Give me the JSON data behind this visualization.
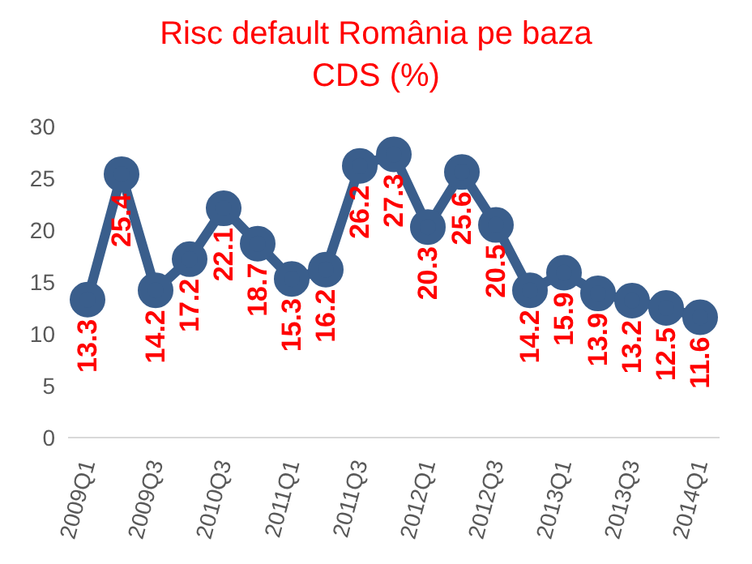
{
  "chart_data": {
    "type": "line",
    "title": "Risc default România pe baza CDS (%)",
    "categories": [
      "2009Q1",
      null,
      "2009Q3",
      null,
      "2010Q3",
      null,
      "2011Q1",
      null,
      "2011Q3",
      null,
      "2012Q1",
      null,
      "2012Q3",
      null,
      "2013Q1",
      null,
      "2013Q3",
      null,
      "2014Q1"
    ],
    "series": [
      {
        "color": "#3a5e8c",
        "values": [
          13.3,
          25.4,
          14.2,
          17.2,
          22.1,
          18.7,
          15.3,
          16.2,
          26.2,
          27.3,
          20.3,
          25.6,
          20.5,
          14.2,
          15.9,
          13.9,
          13.2,
          12.5,
          11.6
        ]
      }
    ],
    "ylim": [
      0,
      30
    ],
    "yticks": [
      0,
      5,
      10,
      15,
      20,
      25,
      30
    ],
    "grid": false,
    "legend": false,
    "marker": "circle",
    "line_style": "solid",
    "data_labels": true
  }
}
